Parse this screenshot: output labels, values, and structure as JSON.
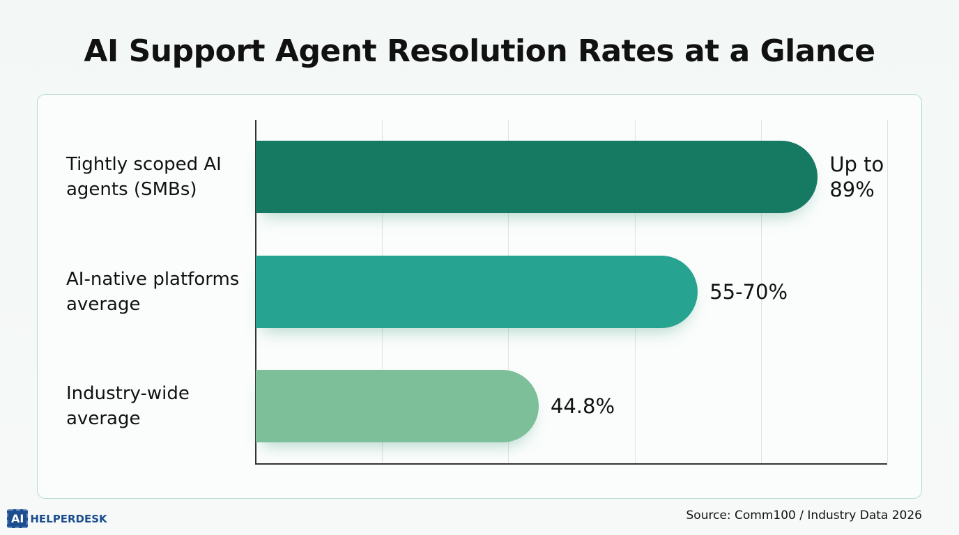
{
  "chart_data": {
    "type": "bar",
    "orientation": "horizontal",
    "title": "AI Support Agent Resolution Rates at a Glance",
    "categories": [
      "Tightly scoped AI agents (SMBs)",
      "AI-native platforms average",
      "Industry-wide average"
    ],
    "values": [
      89,
      70,
      44.8
    ],
    "value_labels": [
      "Up to 89%",
      "55-70%",
      "44.8%"
    ],
    "colors": [
      "#167a62",
      "#27a491",
      "#7cbf98"
    ],
    "xlim": [
      0,
      100
    ],
    "xticks": [
      0,
      20,
      40,
      60,
      80,
      100
    ],
    "grid": true,
    "source": "Source: Comm100 / Industry Data 2026"
  },
  "logo": {
    "mark": "AI",
    "text": "HELPERDESK"
  }
}
